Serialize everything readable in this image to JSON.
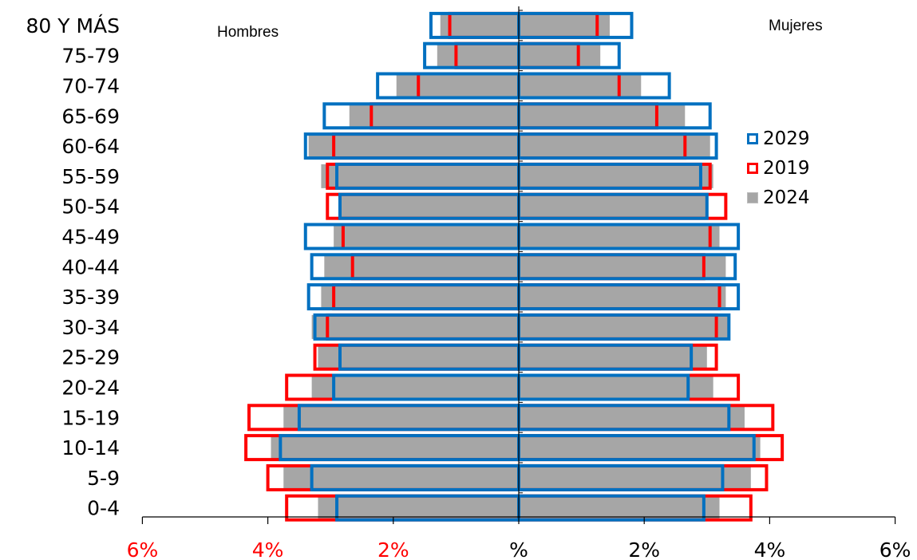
{
  "chart_data": {
    "type": "bar",
    "subtype": "population-pyramid",
    "left_label": "Hombres",
    "right_label": "Mujeres",
    "categories": [
      "0-4",
      "5-9",
      "10-14",
      "15-19",
      "20-24",
      "25-29",
      "30-34",
      "35-39",
      "40-44",
      "45-49",
      "50-54",
      "55-59",
      "60-64",
      "65-69",
      "70-74",
      "75-79",
      "80 Y MÁS"
    ],
    "x_ticks_left": [
      "6%",
      "4%",
      "2%"
    ],
    "x_ticks_right": [
      "%",
      "2%",
      "4%",
      "6%"
    ],
    "xlim": [
      -6,
      6
    ],
    "series": [
      {
        "name": "2029",
        "style": "outline",
        "color": "#0070C0",
        "men": [
          2.9,
          3.3,
          3.8,
          3.5,
          2.95,
          2.85,
          3.25,
          3.35,
          3.3,
          3.4,
          2.85,
          2.9,
          3.4,
          3.1,
          2.25,
          1.5,
          1.4
        ],
        "women": [
          2.95,
          3.25,
          3.75,
          3.35,
          2.7,
          2.75,
          3.35,
          3.5,
          3.45,
          3.5,
          3.0,
          2.9,
          3.15,
          3.05,
          2.4,
          1.6,
          1.8
        ]
      },
      {
        "name": "2019",
        "style": "outline",
        "color": "#FF0000",
        "men": [
          3.7,
          4.0,
          4.35,
          4.3,
          3.7,
          3.25,
          3.05,
          2.95,
          2.65,
          2.8,
          3.05,
          3.05,
          2.95,
          2.35,
          1.6,
          1.0,
          1.1
        ],
        "women": [
          3.7,
          3.95,
          4.2,
          4.05,
          3.5,
          3.15,
          3.15,
          3.2,
          2.95,
          3.05,
          3.3,
          3.05,
          2.65,
          2.2,
          1.6,
          0.95,
          1.25
        ]
      },
      {
        "name": "2024",
        "style": "fill",
        "color": "#A6A6A6",
        "men": [
          3.2,
          3.75,
          3.95,
          3.75,
          3.3,
          3.2,
          3.3,
          3.15,
          3.1,
          2.95,
          2.85,
          3.15,
          3.35,
          2.7,
          1.95,
          1.3,
          1.25
        ],
        "women": [
          3.2,
          3.7,
          3.85,
          3.6,
          3.1,
          3.0,
          3.35,
          3.3,
          3.3,
          3.2,
          3.0,
          3.1,
          3.05,
          2.65,
          1.95,
          1.3,
          1.45
        ]
      }
    ],
    "tick_label_colors": {
      "left": "#FF0000",
      "right": "#000000"
    },
    "legend_placement": "right",
    "grid": false
  }
}
